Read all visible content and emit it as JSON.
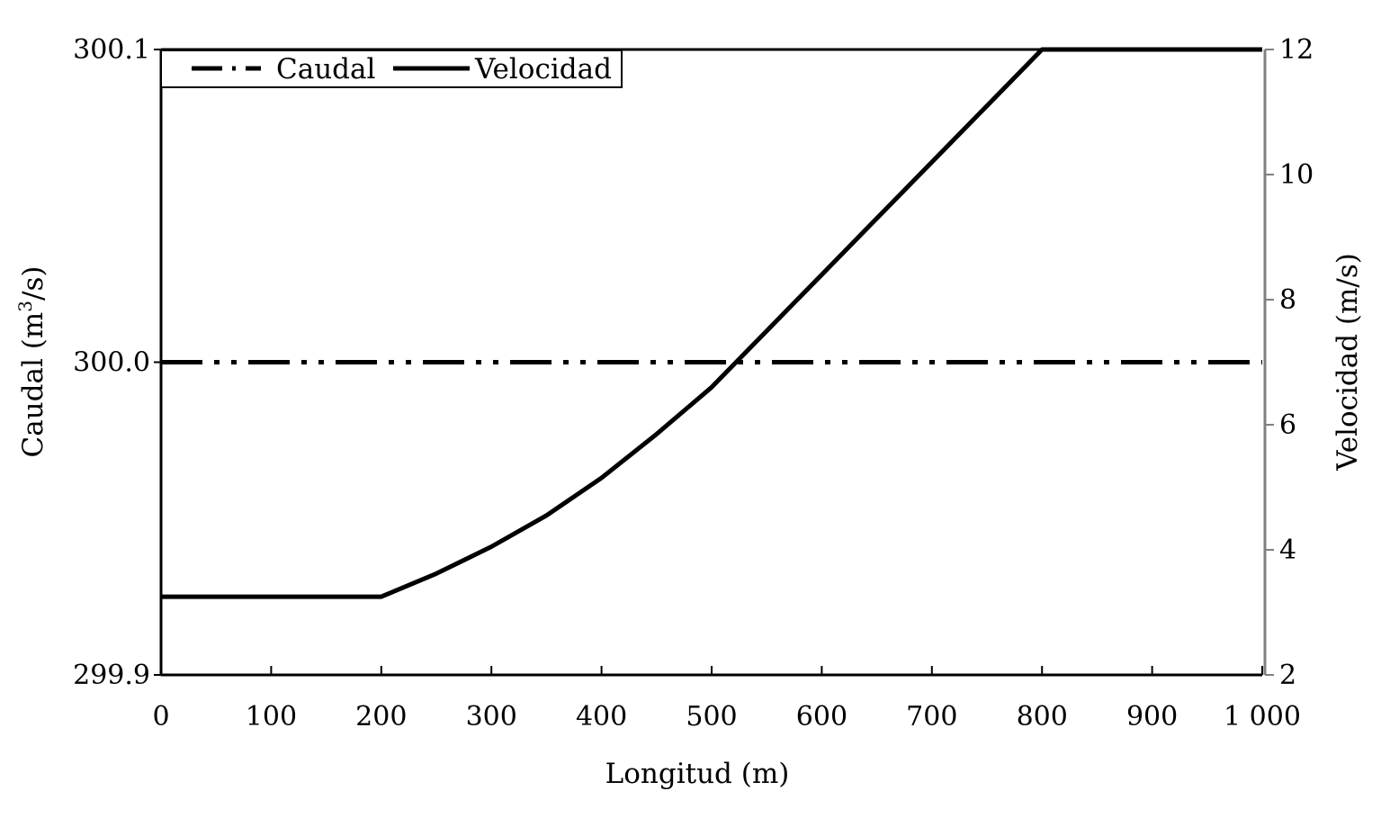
{
  "chart_data": {
    "type": "line",
    "xlabel": "Longitud (m)",
    "y_left_label": "Caudal (m",
    "y_left_label_sup": "3",
    "y_left_label_end": "/s)",
    "y_right_label": "Velocidad (m/s)",
    "xlim": [
      0,
      1000
    ],
    "y_left_lim": [
      299.9,
      300.1
    ],
    "y_right_lim": [
      2,
      12
    ],
    "x_ticks": [
      0,
      100,
      200,
      300,
      400,
      500,
      600,
      700,
      800,
      900,
      1000
    ],
    "x_tick_labels": [
      "0",
      "100",
      "200",
      "300",
      "400",
      "500",
      "600",
      "700",
      "800",
      "900",
      "1 000"
    ],
    "y_left_ticks": [
      299.9,
      300.0,
      300.1
    ],
    "y_left_tick_labels": [
      "299.9",
      "300.0",
      "300.1"
    ],
    "y_right_ticks": [
      2,
      4,
      6,
      8,
      10,
      12
    ],
    "y_right_tick_labels": [
      "2",
      "4",
      "6",
      "8",
      "10",
      "12"
    ],
    "grid": false,
    "legend_position": "top-left",
    "series": [
      {
        "name": "Caudal",
        "axis": "left",
        "style": "dash-dot-dot",
        "color": "#000000",
        "x": [
          0,
          1000
        ],
        "y": [
          300.0,
          300.0
        ]
      },
      {
        "name": "Velocidad",
        "axis": "right",
        "style": "solid",
        "color": "#000000",
        "x": [
          0,
          200,
          250,
          300,
          350,
          400,
          450,
          500,
          550,
          600,
          650,
          700,
          750,
          800,
          1000
        ],
        "y": [
          3.25,
          3.25,
          3.62,
          4.05,
          4.55,
          5.15,
          5.85,
          6.6,
          7.5,
          8.4,
          9.3,
          10.2,
          11.1,
          12.0,
          12.0
        ]
      }
    ]
  }
}
